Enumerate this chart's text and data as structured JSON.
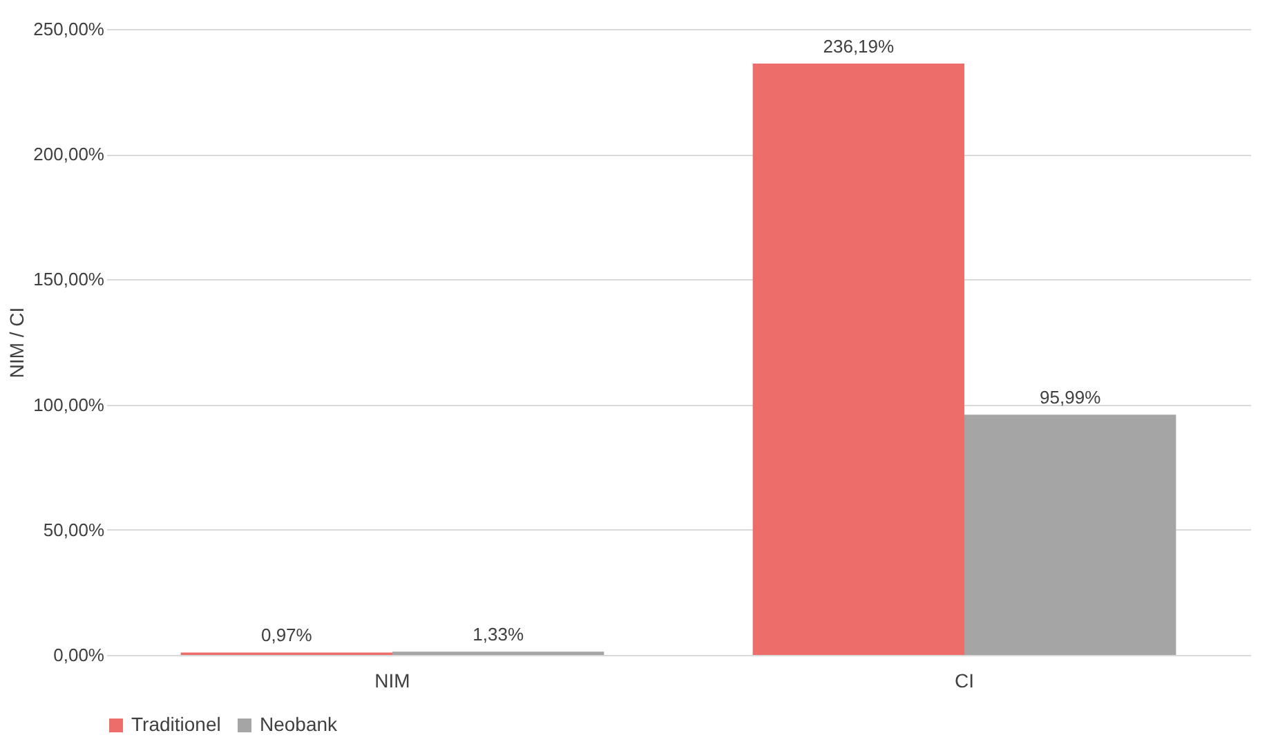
{
  "chart_data": {
    "type": "bar",
    "ylabel": "NIM / CI",
    "categories": [
      "NIM",
      "CI"
    ],
    "series": [
      {
        "name": "Traditionel",
        "color": "#ed6d6b",
        "values": [
          0.97,
          236.19
        ],
        "value_labels": [
          "0,97%",
          "236,19%"
        ]
      },
      {
        "name": "Neobank",
        "color": "#a5a5a5",
        "values": [
          1.33,
          95.99
        ],
        "value_labels": [
          "1,33%",
          "95,99%"
        ]
      }
    ],
    "ylim": [
      0,
      250
    ],
    "yticks": [
      {
        "value": 0,
        "label": "0,00%"
      },
      {
        "value": 50,
        "label": "50,00%"
      },
      {
        "value": 100,
        "label": "100,00%"
      },
      {
        "value": 150,
        "label": "150,00%"
      },
      {
        "value": 200,
        "label": "200,00%"
      },
      {
        "value": 250,
        "label": "250,00%"
      }
    ],
    "grid": "y",
    "legend": "bottom"
  }
}
